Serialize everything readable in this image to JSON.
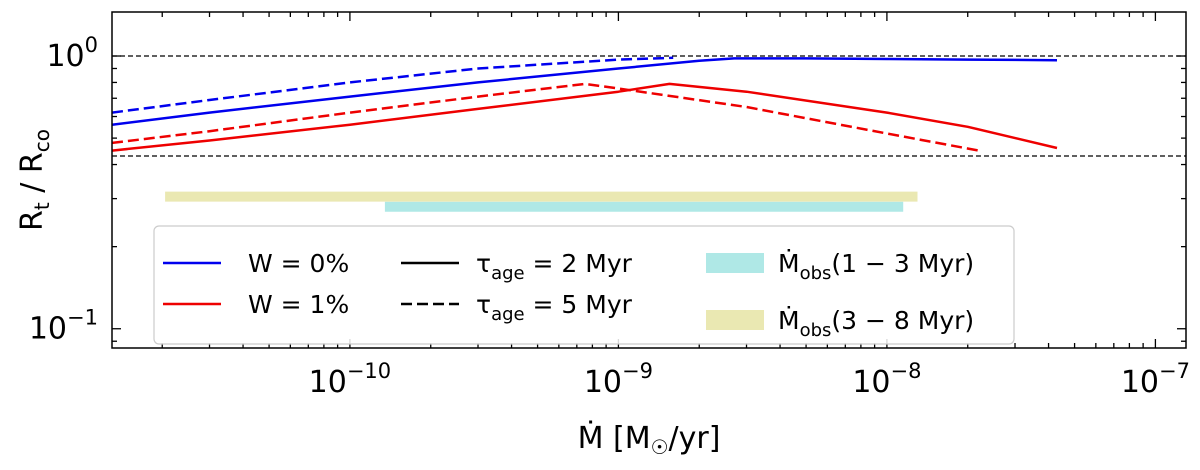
{
  "chart_data": {
    "type": "line",
    "xlabel": "Ṁ [M☉/yr]",
    "ylabel": "Rt / Rco",
    "xscale": "log",
    "yscale": "log",
    "xlim": [
      1.3e-11,
      1.3e-07
    ],
    "ylim": [
      0.085,
      1.45
    ],
    "x_ticks": [
      {
        "value": 1e-10,
        "base": "10",
        "exp": "−10"
      },
      {
        "value": 1e-09,
        "base": "10",
        "exp": "−9"
      },
      {
        "value": 1e-08,
        "base": "10",
        "exp": "−8"
      },
      {
        "value": 1e-07,
        "base": "10",
        "exp": "−7"
      }
    ],
    "y_ticks": [
      {
        "value": 0.1,
        "base": "10",
        "exp": "−1"
      },
      {
        "value": 1.0,
        "base": "10",
        "exp": "0"
      }
    ],
    "hlines": [
      1.0,
      0.43
    ],
    "series": [
      {
        "name": "W = 0%, τage = 2 Myr",
        "color": "#0000ee",
        "dash": "solid",
        "x": [
          1.3e-11,
          3e-11,
          1e-10,
          3e-10,
          1e-09,
          2e-09,
          2.7e-09,
          5e-09,
          1e-08,
          2e-08,
          4.3e-08
        ],
        "y": [
          0.56,
          0.62,
          0.71,
          0.8,
          0.9,
          0.96,
          0.98,
          0.98,
          0.975,
          0.97,
          0.965
        ]
      },
      {
        "name": "W = 0%, τage = 5 Myr",
        "color": "#0000ee",
        "dash": "dashed",
        "x": [
          1.3e-11,
          3e-11,
          1e-10,
          3e-10,
          1e-09,
          1.6e-09
        ],
        "y": [
          0.62,
          0.69,
          0.8,
          0.9,
          0.97,
          0.985
        ]
      },
      {
        "name": "W = 1%, τage = 2 Myr",
        "color": "#ee0000",
        "dash": "solid",
        "x": [
          1.3e-11,
          3e-11,
          1e-10,
          3e-10,
          1e-09,
          1.55e-09,
          3e-09,
          1e-08,
          2e-08,
          4.3e-08
        ],
        "y": [
          0.45,
          0.49,
          0.56,
          0.64,
          0.74,
          0.79,
          0.74,
          0.62,
          0.55,
          0.46
        ]
      },
      {
        "name": "W = 1%, τage = 5 Myr",
        "color": "#ee0000",
        "dash": "dashed",
        "x": [
          1.3e-11,
          3e-11,
          1e-10,
          3e-10,
          7.5e-10,
          1e-09,
          3e-09,
          1e-08,
          2.2e-08
        ],
        "y": [
          0.48,
          0.53,
          0.62,
          0.71,
          0.79,
          0.76,
          0.65,
          0.52,
          0.45
        ]
      }
    ],
    "bands": [
      {
        "name": "Ṁobs(1 − 3 Myr)",
        "color": "#afe8e6",
        "x": [
          1.35e-10,
          1.15e-08
        ],
        "y": 0.28
      },
      {
        "name": "Ṁobs(3 − 8 Myr)",
        "color": "#eae8b2",
        "x": [
          2.05e-11,
          1.3e-08
        ],
        "y": 0.305
      }
    ],
    "legend": {
      "placement": "lower-left",
      "entries": [
        {
          "id": "w0",
          "label": "W = 0%",
          "color": "#0000ee",
          "style": "line"
        },
        {
          "id": "w1",
          "label": "W = 1%",
          "color": "#ee0000",
          "style": "line"
        },
        {
          "id": "tau2",
          "label_main": "τ",
          "label_sub": "age",
          "label_rest": " = 2 Myr",
          "color": "#000000",
          "style": "solid"
        },
        {
          "id": "tau5",
          "label_main": "τ",
          "label_sub": "age",
          "label_rest": " = 5 Myr",
          "color": "#000000",
          "style": "dashed"
        },
        {
          "id": "obs13",
          "label_main": "Ṁ",
          "label_sub": "obs",
          "label_rest": "(1 − 3 Myr)",
          "color": "#afe8e6",
          "style": "patch"
        },
        {
          "id": "obs38",
          "label_main": "Ṁ",
          "label_sub": "obs",
          "label_rest": "(3 − 8 Myr)",
          "color": "#eae8b2",
          "style": "patch"
        }
      ]
    }
  }
}
